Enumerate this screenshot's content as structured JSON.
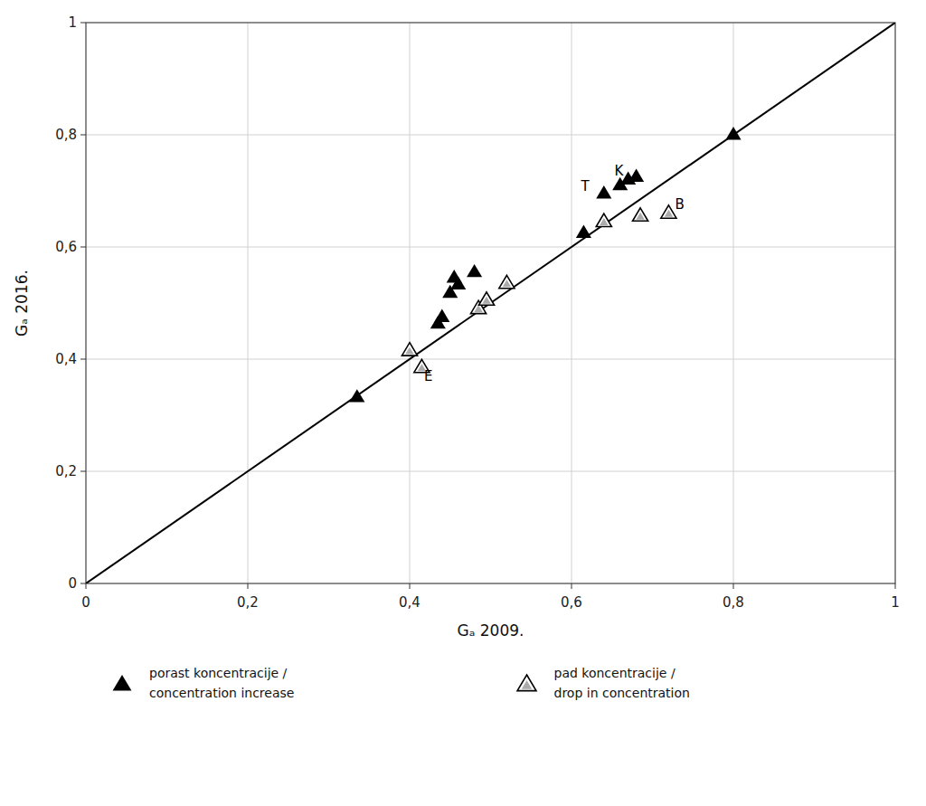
{
  "chart_data": {
    "type": "scatter",
    "title": "",
    "x_label": "Gₐ 2009.",
    "y_label": "Gₐ 2016.",
    "xlim": [
      0,
      1
    ],
    "ylim": [
      0,
      1
    ],
    "xticks": [
      0,
      {
        "value": 0.2,
        "label": "0,2"
      },
      {
        "value": 0.4,
        "label": "0,4"
      },
      {
        "value": 0.6,
        "label": "0,6"
      },
      {
        "value": 0.8,
        "label": "0,8"
      },
      1
    ],
    "yticks": [
      0,
      {
        "value": 0.2,
        "label": "0,2"
      },
      {
        "value": 0.4,
        "label": "0,4"
      },
      {
        "value": 0.6,
        "label": "0,6"
      },
      {
        "value": 0.8,
        "label": "0,8"
      },
      1
    ],
    "grid": true,
    "diagonal": [
      [
        0,
        0
      ],
      [
        1,
        1
      ]
    ],
    "series": [
      {
        "name": "porast koncentracije / concentration increase",
        "color": "#000000",
        "marker": "triangle",
        "x": [
          0.335,
          0.435,
          0.44,
          0.45,
          0.455,
          0.46,
          0.48,
          0.615,
          0.64,
          0.66,
          0.67,
          0.68,
          0.8
        ],
        "y": [
          0.332,
          0.463,
          0.475,
          0.518,
          0.545,
          0.533,
          0.555,
          0.625,
          0.695,
          0.71,
          0.72,
          0.725,
          0.8
        ]
      },
      {
        "name": "pad koncentracije / drop in concentration",
        "color": "#000000",
        "marker": "triangle-open",
        "x": [
          0.4,
          0.415,
          0.485,
          0.495,
          0.52,
          0.64,
          0.685,
          0.72
        ],
        "y": [
          0.415,
          0.385,
          0.49,
          0.505,
          0.535,
          0.645,
          0.655,
          0.66
        ]
      }
    ],
    "annotations": [
      {
        "text": "T",
        "x": 0.622,
        "y": 0.7,
        "align": "right"
      },
      {
        "text": "K",
        "x": 0.653,
        "y": 0.728,
        "align": "left"
      },
      {
        "text": "B",
        "x": 0.728,
        "y": 0.668,
        "align": "left"
      },
      {
        "text": "E",
        "x": 0.418,
        "y": 0.362,
        "align": "left"
      }
    ]
  }
}
